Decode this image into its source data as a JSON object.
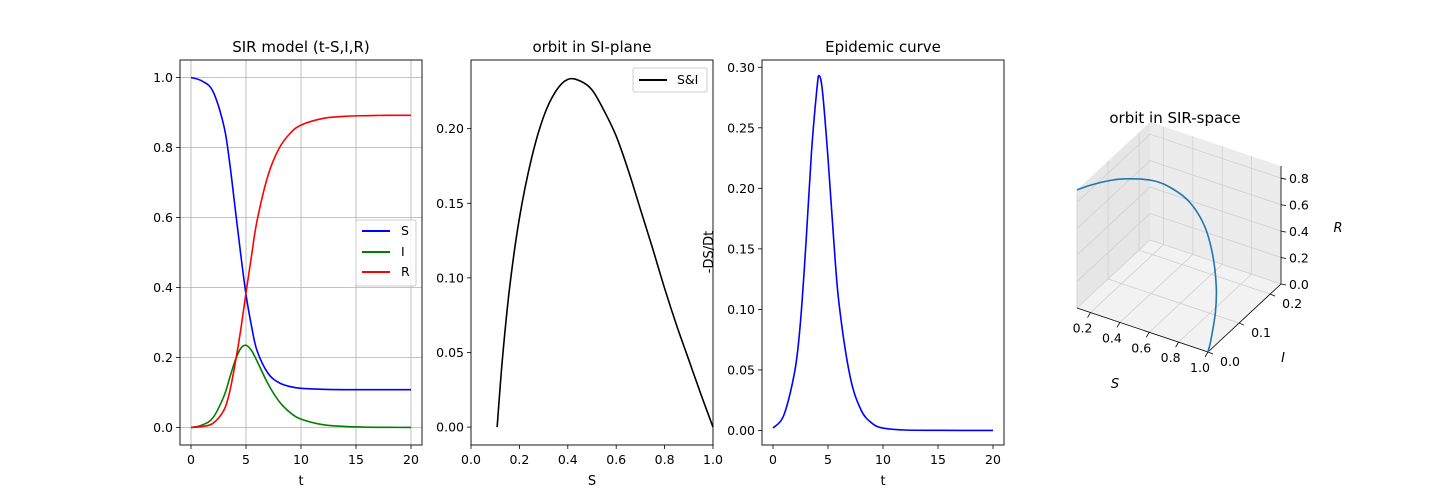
{
  "colors": {
    "S": "#0000ff",
    "I": "#008000",
    "R": "#ff0000",
    "orbit": "#000000",
    "curve3d": "#1f77b4",
    "grid": "#b0b0b0",
    "pane": "#f2f2f2"
  },
  "chart_data": [
    {
      "type": "line",
      "title": "SIR model (t-S,I,R)",
      "xlabel": "t",
      "ylabel": "",
      "xlim": [
        -1,
        21
      ],
      "ylim": [
        -0.05,
        1.05
      ],
      "xticks": [
        "0",
        "5",
        "10",
        "15",
        "20"
      ],
      "yticks": [
        "0.0",
        "0.2",
        "0.4",
        "0.6",
        "0.8",
        "1.0"
      ],
      "grid": true,
      "legend": "center-right",
      "x": [
        0,
        1,
        2,
        3,
        3.5,
        4,
        4.5,
        5,
        5.5,
        6,
        7,
        8,
        9,
        10,
        12,
        14,
        16,
        18,
        20
      ],
      "series": [
        {
          "name": "S",
          "values": [
            1.0,
            0.99,
            0.96,
            0.86,
            0.76,
            0.63,
            0.5,
            0.38,
            0.29,
            0.22,
            0.155,
            0.128,
            0.117,
            0.112,
            0.109,
            0.108,
            0.108,
            0.108,
            0.108
          ]
        },
        {
          "name": "I",
          "values": [
            0.0,
            0.007,
            0.028,
            0.09,
            0.14,
            0.19,
            0.225,
            0.235,
            0.22,
            0.19,
            0.125,
            0.075,
            0.043,
            0.024,
            0.008,
            0.003,
            0.001,
            0.0005,
            0.0002
          ]
        },
        {
          "name": "R",
          "values": [
            0.0,
            0.003,
            0.012,
            0.05,
            0.1,
            0.18,
            0.275,
            0.385,
            0.49,
            0.59,
            0.72,
            0.797,
            0.84,
            0.864,
            0.883,
            0.889,
            0.891,
            0.892,
            0.892
          ]
        }
      ]
    },
    {
      "type": "line",
      "title": "orbit in SI-plane",
      "xlabel": "S",
      "ylabel": "",
      "xlim": [
        0.0,
        1.0
      ],
      "ylim": [
        -0.012,
        0.246
      ],
      "xticks": [
        "0.0",
        "0.2",
        "0.4",
        "0.6",
        "0.8",
        "1.0"
      ],
      "yticks": [
        "0.00",
        "0.05",
        "0.10",
        "0.15",
        "0.20"
      ],
      "grid": false,
      "legend": "top-right",
      "series": [
        {
          "name": "S&I",
          "x": [
            0.108,
            0.13,
            0.16,
            0.2,
            0.25,
            0.3,
            0.35,
            0.4,
            0.45,
            0.5,
            0.55,
            0.6,
            0.65,
            0.7,
            0.75,
            0.8,
            0.85,
            0.9,
            0.95,
            1.0
          ],
          "values": [
            0.0,
            0.046,
            0.094,
            0.14,
            0.18,
            0.208,
            0.225,
            0.233,
            0.232,
            0.226,
            0.212,
            0.195,
            0.172,
            0.146,
            0.12,
            0.093,
            0.068,
            0.045,
            0.022,
            0.0
          ]
        }
      ]
    },
    {
      "type": "line",
      "title": "Epidemic curve",
      "xlabel": "t",
      "ylabel": "-DS/Dt",
      "xlim": [
        -1,
        21
      ],
      "ylim": [
        -0.012,
        0.306
      ],
      "xticks": [
        "0",
        "5",
        "10",
        "15",
        "20"
      ],
      "yticks": [
        "0.00",
        "0.05",
        "0.10",
        "0.15",
        "0.20",
        "0.25",
        "0.30"
      ],
      "grid": false,
      "legend": "none",
      "x": [
        0,
        1,
        2,
        2.5,
        3,
        3.5,
        4,
        4.2,
        4.5,
        5,
        5.5,
        6,
        7,
        8,
        9,
        10,
        12,
        15,
        20
      ],
      "series": [
        {
          "name": "",
          "values": [
            0.002,
            0.013,
            0.05,
            0.09,
            0.155,
            0.23,
            0.283,
            0.293,
            0.28,
            0.225,
            0.16,
            0.105,
            0.045,
            0.017,
            0.006,
            0.002,
            0.0004,
            0.0001,
            0.0
          ]
        }
      ]
    },
    {
      "type": "line",
      "title": "orbit in SIR-space",
      "xlabel": "S",
      "ylabel": "I",
      "zlabel": "R",
      "xticks": [
        "0.2",
        "0.4",
        "0.6",
        "0.8",
        "1.0"
      ],
      "yticks": [
        "0.0",
        "0.1",
        "0.2"
      ],
      "zticks": [
        "0.0",
        "0.2",
        "0.4",
        "0.6",
        "0.8"
      ],
      "xlim": [
        0.108,
        1.0
      ],
      "ylim": [
        0.0,
        0.235
      ],
      "zlim": [
        0.0,
        0.892
      ],
      "grid": true,
      "legend": "none",
      "series": [
        {
          "name": "",
          "S": [
            1.0,
            0.99,
            0.96,
            0.86,
            0.76,
            0.63,
            0.5,
            0.38,
            0.29,
            0.22,
            0.155,
            0.128,
            0.117,
            0.112,
            0.109,
            0.108,
            0.108
          ],
          "I": [
            0.0,
            0.007,
            0.028,
            0.09,
            0.14,
            0.19,
            0.225,
            0.235,
            0.22,
            0.19,
            0.125,
            0.075,
            0.043,
            0.024,
            0.008,
            0.003,
            0.0005
          ],
          "R": [
            0.0,
            0.003,
            0.012,
            0.05,
            0.1,
            0.18,
            0.275,
            0.385,
            0.49,
            0.59,
            0.72,
            0.797,
            0.84,
            0.864,
            0.883,
            0.889,
            0.892
          ]
        }
      ]
    }
  ]
}
